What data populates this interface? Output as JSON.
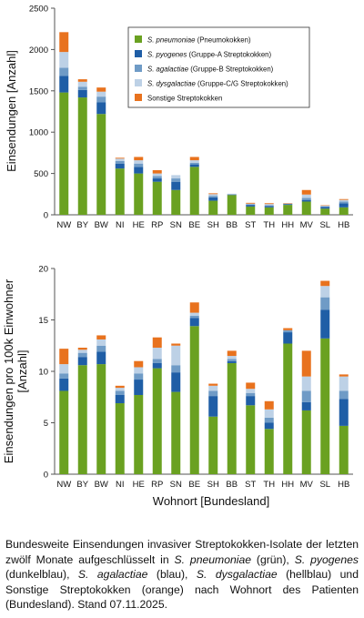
{
  "charts": {
    "states": [
      "NW",
      "BY",
      "BW",
      "NI",
      "HE",
      "RP",
      "SN",
      "BE",
      "SH",
      "BB",
      "ST",
      "TH",
      "HH",
      "MV",
      "SL",
      "HB"
    ],
    "colors": {
      "pneumoniae": "#6aa121",
      "pyogenes": "#1f5ea6",
      "agalactiae": "#6f9bc6",
      "dysgalactiae": "#bdd1e6",
      "sonstige": "#e8721e"
    },
    "legend": [
      {
        "key": "pneumoniae",
        "italic": "S. pneumoniae",
        "rest": " (Pneumokokken)"
      },
      {
        "key": "pyogenes",
        "italic": "S. pyogenes",
        "rest": " (Gruppe-A Streptokokken)"
      },
      {
        "key": "agalactiae",
        "italic": "S. agalactiae",
        "rest": " (Gruppe-B Streptokokken)"
      },
      {
        "key": "dysgalactiae",
        "italic": "S. dysgalactiae",
        "rest": " (Gruppe-C/G Streptokokken)"
      },
      {
        "key": "sonstige",
        "italic": "",
        "rest": "Sonstige Streptokokken"
      }
    ],
    "xlabel": "Wohnort [Bundesland]"
  },
  "chart_data": [
    {
      "type": "bar",
      "stacked": true,
      "ylabel": "Einsendungen [Anzahl]",
      "ylim": [
        0,
        2500
      ],
      "yticks": [
        0,
        500,
        1000,
        1500,
        2000,
        2500
      ],
      "categories": [
        "NW",
        "BY",
        "BW",
        "NI",
        "HE",
        "RP",
        "SN",
        "BE",
        "SH",
        "BB",
        "ST",
        "TH",
        "HH",
        "MV",
        "SL",
        "HB"
      ],
      "legend_position": "top-right",
      "series": [
        {
          "key": "pneumoniae",
          "name": "S. pneumoniae (Pneumokokken)",
          "values": [
            1480,
            1420,
            1220,
            560,
            500,
            400,
            300,
            580,
            170,
            240,
            100,
            90,
            120,
            160,
            75,
            90
          ]
        },
        {
          "key": "pyogenes",
          "name": "S. pyogenes (Gruppe-A Streptokokken)",
          "values": [
            200,
            90,
            140,
            60,
            80,
            40,
            100,
            30,
            40,
            5,
            20,
            15,
            10,
            20,
            20,
            50
          ]
        },
        {
          "key": "agalactiae",
          "name": "S. agalactiae (Gruppe-B Streptokokken)",
          "values": [
            100,
            40,
            70,
            30,
            40,
            30,
            40,
            20,
            20,
            5,
            8,
            10,
            4,
            25,
            8,
            20
          ]
        },
        {
          "key": "dysgalactiae",
          "name": "S. dysgalactiae (Gruppe-C/G Streptokokken)",
          "values": [
            190,
            60,
            60,
            30,
            40,
            30,
            40,
            30,
            20,
            5,
            7,
            15,
            4,
            40,
            10,
            20
          ]
        },
        {
          "key": "sonstige",
          "name": "Sonstige Streptokokken",
          "values": [
            240,
            30,
            50,
            10,
            40,
            40,
            0,
            40,
            10,
            0,
            10,
            10,
            2,
            55,
            2,
            10
          ]
        }
      ]
    },
    {
      "type": "bar",
      "stacked": true,
      "ylabel": "Einsendungen pro 100k Einwohner [Anzahl]",
      "xlabel": "Wohnort [Bundesland]",
      "ylim": [
        0,
        20
      ],
      "yticks": [
        0,
        5,
        10,
        15,
        20
      ],
      "categories": [
        "NW",
        "BY",
        "BW",
        "NI",
        "HE",
        "RP",
        "SN",
        "BE",
        "SH",
        "BB",
        "ST",
        "TH",
        "HH",
        "MV",
        "SL",
        "HB"
      ],
      "series": [
        {
          "key": "pneumoniae",
          "name": "S. pneumoniae (Pneumokokken)",
          "values": [
            8.1,
            10.6,
            10.7,
            6.9,
            7.7,
            10.3,
            8.0,
            14.4,
            5.6,
            10.8,
            6.7,
            4.4,
            12.7,
            6.2,
            13.2,
            4.7
          ]
        },
        {
          "key": "pyogenes",
          "name": "S. pyogenes (Gruppe-A Streptokokken)",
          "values": [
            1.2,
            0.8,
            1.2,
            0.8,
            1.5,
            0.5,
            1.9,
            0.8,
            2.0,
            0.2,
            0.9,
            0.6,
            1.1,
            0.8,
            2.8,
            2.6
          ]
        },
        {
          "key": "agalactiae",
          "name": "S. agalactiae (Gruppe-B Streptokokken)",
          "values": [
            0.5,
            0.4,
            0.6,
            0.4,
            0.6,
            0.4,
            0.7,
            0.2,
            0.5,
            0.2,
            0.3,
            0.5,
            0.2,
            1.1,
            1.2,
            0.8
          ]
        },
        {
          "key": "dysgalactiae",
          "name": "S. dysgalactiae (Gruppe-C/G Streptokokken)",
          "values": [
            0.9,
            0.3,
            0.6,
            0.3,
            0.6,
            1.1,
            1.9,
            0.3,
            0.5,
            0.3,
            0.4,
            0.8,
            0.0,
            1.4,
            1.1,
            1.4
          ]
        },
        {
          "key": "sonstige",
          "name": "Sonstige Streptokokken",
          "values": [
            1.5,
            0.2,
            0.4,
            0.2,
            0.6,
            1.0,
            0.2,
            1.0,
            0.2,
            0.5,
            0.6,
            0.8,
            0.2,
            2.5,
            0.5,
            0.2
          ]
        }
      ]
    }
  ],
  "caption": {
    "parts": [
      {
        "t": "Bundesweite Einsendungen invasiver Streptokokken-Isolate der letzten zwölf Monate aufgeschlüsselt in "
      },
      {
        "t": "S. pneumoniae",
        "i": true
      },
      {
        "t": " (grün), "
      },
      {
        "t": "S. pyogenes",
        "i": true
      },
      {
        "t": " (dunkelblau), "
      },
      {
        "t": "S. agalactiae",
        "i": true
      },
      {
        "t": " (blau), "
      },
      {
        "t": "S. dysgalactiae",
        "i": true
      },
      {
        "t": " (hellblau) und Sonstige Streptokokken (orange) nach Wohnort des Patienten (Bundesland). Stand 07.11.2025."
      }
    ]
  }
}
